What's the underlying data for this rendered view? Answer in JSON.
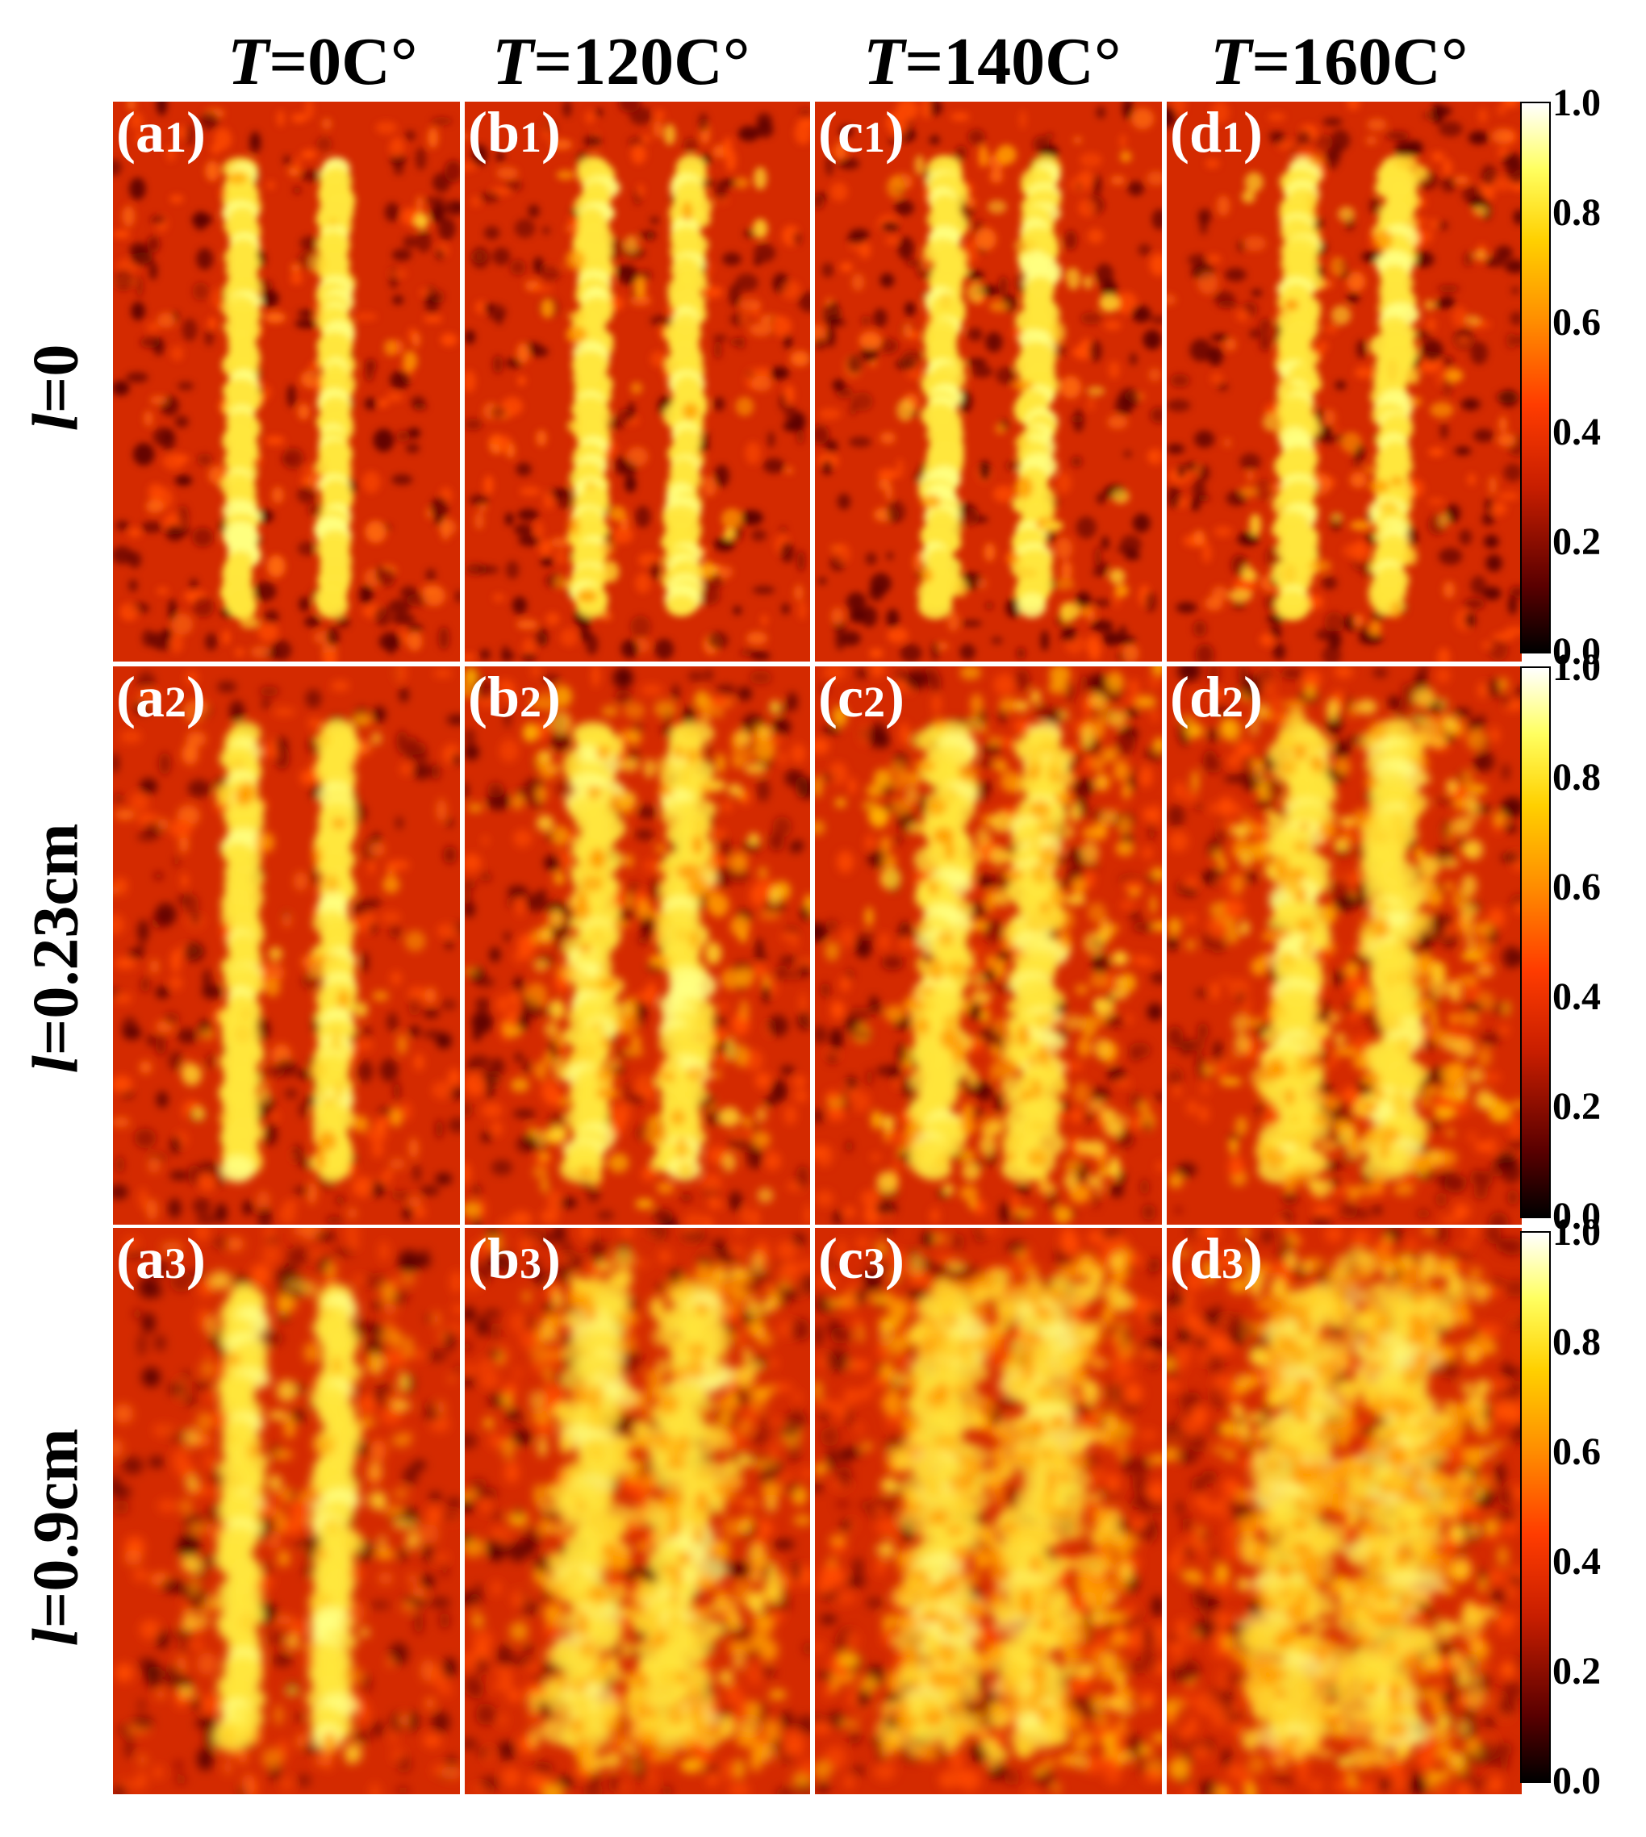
{
  "columns": [
    {
      "var": "T",
      "text": "=0C°"
    },
    {
      "var": "T",
      "text": "=120C°"
    },
    {
      "var": "T",
      "text": "=140C°"
    },
    {
      "var": "T",
      "text": "=160C°"
    }
  ],
  "rows": [
    {
      "var": "l",
      "text": "=0"
    },
    {
      "var": "l",
      "text": "=0.23cm"
    },
    {
      "var": "l",
      "text": "=0.9cm"
    }
  ],
  "panels": [
    [
      {
        "letter": "a",
        "sub": "1"
      },
      {
        "letter": "b",
        "sub": "1"
      },
      {
        "letter": "c",
        "sub": "1"
      },
      {
        "letter": "d",
        "sub": "1"
      }
    ],
    [
      {
        "letter": "a",
        "sub": "2"
      },
      {
        "letter": "b",
        "sub": "2"
      },
      {
        "letter": "c",
        "sub": "2"
      },
      {
        "letter": "d",
        "sub": "2"
      }
    ],
    [
      {
        "letter": "a",
        "sub": "3"
      },
      {
        "letter": "b",
        "sub": "3"
      },
      {
        "letter": "c",
        "sub": "3"
      },
      {
        "letter": "d",
        "sub": "3"
      }
    ]
  ],
  "colorbar": {
    "ticks": [
      "1.0",
      "0.8",
      "0.6",
      "0.4",
      "0.2",
      "0.0"
    ],
    "range": [
      0,
      1
    ]
  },
  "colors": {
    "background_red": "#d42a00",
    "stripe_yellow": "#ffe63c",
    "speckle_dark": "#3a0000"
  }
}
